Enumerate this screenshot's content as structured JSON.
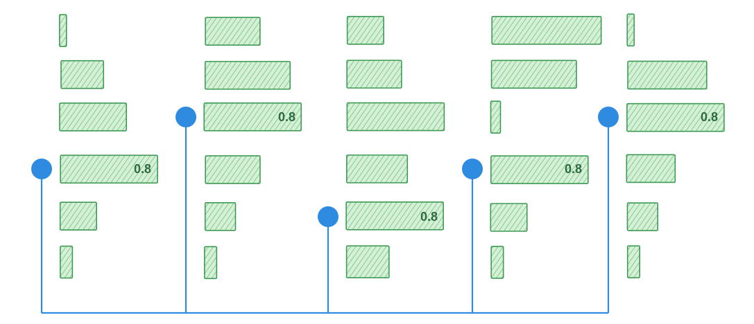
{
  "chart_data": {
    "type": "bar",
    "orientation": "horizontal",
    "style": "hand-drawn hatched bars with a tree of lollipop connectors",
    "panels": 5,
    "rows_per_panel": 6,
    "grid": false,
    "legend": "none",
    "xlim": [
      0,
      1
    ],
    "panel_values": [
      [
        0.05,
        0.35,
        0.55,
        0.8,
        0.3,
        0.1
      ],
      [
        0.45,
        0.7,
        0.8,
        0.45,
        0.25,
        0.1
      ],
      [
        0.3,
        0.45,
        0.8,
        0.5,
        0.8,
        0.35
      ],
      [
        0.9,
        0.7,
        0.08,
        0.8,
        0.3,
        0.1
      ],
      [
        0.05,
        0.65,
        0.8,
        0.4,
        0.25,
        0.1
      ]
    ],
    "highlighted_row": [
      3,
      2,
      4,
      3,
      2
    ],
    "value_labels": [
      "0.8",
      "0.8",
      "0.8",
      "0.8",
      "0.8"
    ]
  },
  "colors": {
    "bar_fill": "#d6f0d8",
    "bar_hatch": "#6cc27a",
    "bar_stroke": "#3e9a55",
    "label": "#2e6b3e",
    "connector": "#2f8be0",
    "dot": "#2f8be0"
  }
}
